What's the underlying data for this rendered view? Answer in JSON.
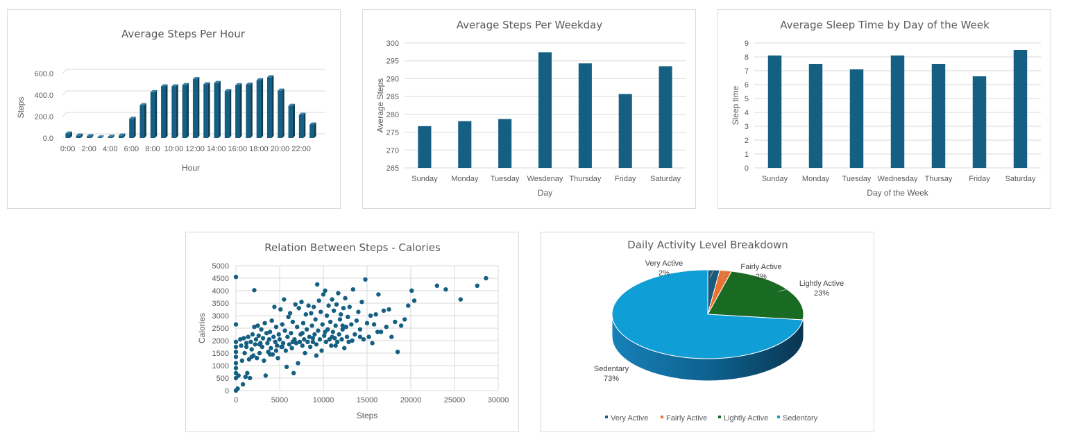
{
  "colors": {
    "bar": "#145f82",
    "bar_dark": "#0d3f57",
    "grid": "#d9d9d9",
    "very_active": "#1a5a7c",
    "fairly_active": "#e97132",
    "lightly_active": "#196b24",
    "sedentary": "#0f9ed5"
  },
  "chart_data": [
    {
      "id": "steps-per-hour",
      "type": "bar",
      "style": "3d-column",
      "title": "Average Steps Per Hour",
      "xlabel": "Hour",
      "ylabel": "Steps",
      "ylim": [
        0,
        600
      ],
      "yticks": [
        "0.0",
        "200.0",
        "400.0",
        "600.0"
      ],
      "xtick_labels": [
        "0:00",
        "2:00",
        "4:00",
        "6:00",
        "8:00",
        "10:00",
        "12:00",
        "14:00",
        "16:00",
        "18:00",
        "20:00",
        "22:00"
      ],
      "x": [
        0,
        1,
        2,
        3,
        4,
        5,
        6,
        7,
        8,
        9,
        10,
        11,
        12,
        13,
        14,
        15,
        16,
        17,
        18,
        19,
        20,
        21,
        22,
        23
      ],
      "values": [
        42,
        23,
        17,
        6,
        12,
        23,
        179,
        306,
        427,
        481,
        481,
        493,
        548,
        500,
        512,
        437,
        491,
        497,
        538,
        565,
        441,
        299,
        216,
        126
      ],
      "grid": true,
      "legend": "none"
    },
    {
      "id": "steps-per-weekday",
      "type": "bar",
      "title": "Average Steps Per Weekday",
      "xlabel": "Day",
      "ylabel": "Average Steps",
      "ylim": [
        265,
        300
      ],
      "yticks": [
        "265",
        "270",
        "275",
        "280",
        "285",
        "290",
        "295",
        "300"
      ],
      "categories": [
        "Sunday",
        "Monday",
        "Tuesday",
        "Wesdenay",
        "Thursday",
        "Friday",
        "Saturday"
      ],
      "values": [
        276.7,
        278.1,
        278.7,
        297.4,
        294.3,
        285.7,
        293.5
      ],
      "grid": true,
      "legend": "none"
    },
    {
      "id": "sleep-by-day",
      "type": "bar",
      "title": "Average Sleep Time by Day of the Week",
      "xlabel": "Day of the Week",
      "ylabel": "Sleep time",
      "ylim": [
        0,
        9
      ],
      "yticks": [
        "0",
        "1",
        "2",
        "3",
        "4",
        "5",
        "6",
        "7",
        "8",
        "9"
      ],
      "categories": [
        "Sunday",
        "Monday",
        "Tuesday",
        "Wednesday",
        "Thursay",
        "Friday",
        "Saturday"
      ],
      "values": [
        8.1,
        7.5,
        7.1,
        8.1,
        7.5,
        6.6,
        8.5
      ],
      "grid": true,
      "legend": "none"
    },
    {
      "id": "steps-vs-calories",
      "type": "scatter",
      "title": "Relation Between Steps - Calories",
      "xlabel": "Steps",
      "ylabel": "Calories",
      "xlim": [
        0,
        30000
      ],
      "ylim": [
        0,
        5000
      ],
      "xticks": [
        "0",
        "5000",
        "10000",
        "15000",
        "20000",
        "25000",
        "30000"
      ],
      "yticks": [
        "0",
        "500",
        "1000",
        "1500",
        "2000",
        "2500",
        "3000",
        "3500",
        "4000",
        "4500",
        "5000"
      ],
      "points": [
        [
          0,
          4550
        ],
        [
          2100,
          4020
        ],
        [
          0,
          2650
        ],
        [
          0,
          1950
        ],
        [
          0,
          1750
        ],
        [
          0,
          1550
        ],
        [
          0,
          1350
        ],
        [
          0,
          1100
        ],
        [
          0,
          900
        ],
        [
          0,
          700
        ],
        [
          0,
          500
        ],
        [
          0,
          0
        ],
        [
          200,
          80
        ],
        [
          300,
          600
        ],
        [
          500,
          2050
        ],
        [
          600,
          1800
        ],
        [
          700,
          1200
        ],
        [
          800,
          250
        ],
        [
          900,
          2100
        ],
        [
          1000,
          1500
        ],
        [
          1100,
          550
        ],
        [
          1200,
          1900
        ],
        [
          1300,
          700
        ],
        [
          1400,
          2150
        ],
        [
          1500,
          1250
        ],
        [
          1600,
          500
        ],
        [
          1700,
          1950
        ],
        [
          1800,
          1650
        ],
        [
          1900,
          2250
        ],
        [
          2000,
          1400
        ],
        [
          2100,
          2550
        ],
        [
          2200,
          1850
        ],
        [
          2300,
          2050
        ],
        [
          2400,
          1300
        ],
        [
          2500,
          2600
        ],
        [
          2600,
          2200
        ],
        [
          2700,
          1500
        ],
        [
          2800,
          1900
        ],
        [
          2900,
          2450
        ],
        [
          3000,
          1750
        ],
        [
          3100,
          2100
        ],
        [
          3200,
          1200
        ],
        [
          3300,
          2700
        ],
        [
          3400,
          600
        ],
        [
          3500,
          2300
        ],
        [
          3600,
          1900
        ],
        [
          3700,
          1550
        ],
        [
          3800,
          2050
        ],
        [
          3900,
          2350
        ],
        [
          4000,
          1700
        ],
        [
          4100,
          2800
        ],
        [
          4200,
          1450
        ],
        [
          4300,
          2150
        ],
        [
          4400,
          3350
        ],
        [
          4500,
          1950
        ],
        [
          4600,
          2550
        ],
        [
          4700,
          1800
        ],
        [
          4800,
          1300
        ],
        [
          4900,
          2250
        ],
        [
          5000,
          2050
        ],
        [
          5100,
          3250
        ],
        [
          5200,
          1750
        ],
        [
          5300,
          2650
        ],
        [
          5400,
          1900
        ],
        [
          5500,
          3650
        ],
        [
          5600,
          2400
        ],
        [
          5700,
          1600
        ],
        [
          5800,
          950
        ],
        [
          5900,
          2150
        ],
        [
          6000,
          2950
        ],
        [
          6100,
          1850
        ],
        [
          6200,
          3100
        ],
        [
          6300,
          2300
        ],
        [
          6400,
          1700
        ],
        [
          6500,
          2750
        ],
        [
          6600,
          700
        ],
        [
          6700,
          2050
        ],
        [
          6800,
          3450
        ],
        [
          6900,
          1900
        ],
        [
          7000,
          2550
        ],
        [
          7100,
          1100
        ],
        [
          7200,
          3300
        ],
        [
          7300,
          1950
        ],
        [
          7400,
          2250
        ],
        [
          7500,
          3550
        ],
        [
          7600,
          1800
        ],
        [
          7700,
          2700
        ],
        [
          7800,
          2050
        ],
        [
          7900,
          1500
        ],
        [
          8000,
          3050
        ],
        [
          8100,
          2450
        ],
        [
          8200,
          1950
        ],
        [
          8300,
          3400
        ],
        [
          8400,
          2150
        ],
        [
          8500,
          1750
        ],
        [
          8600,
          3100
        ],
        [
          8700,
          2600
        ],
        [
          8800,
          1950
        ],
        [
          8900,
          3350
        ],
        [
          9000,
          2250
        ],
        [
          9100,
          2850
        ],
        [
          9200,
          1850
        ],
        [
          9300,
          4250
        ],
        [
          9400,
          2400
        ],
        [
          9500,
          3600
        ],
        [
          9600,
          2050
        ],
        [
          9700,
          3150
        ],
        [
          9800,
          1600
        ],
        [
          9900,
          2650
        ],
        [
          10000,
          3850
        ],
        [
          10100,
          2200
        ],
        [
          10200,
          4000
        ],
        [
          10300,
          1950
        ],
        [
          10400,
          3000
        ],
        [
          10500,
          2450
        ],
        [
          10600,
          3400
        ],
        [
          10700,
          2050
        ],
        [
          10800,
          2750
        ],
        [
          10900,
          1800
        ],
        [
          11000,
          3650
        ],
        [
          11100,
          2350
        ],
        [
          11200,
          3200
        ],
        [
          11300,
          2100
        ],
        [
          11400,
          2600
        ],
        [
          11500,
          3450
        ],
        [
          11600,
          1950
        ],
        [
          11700,
          3900
        ],
        [
          11800,
          2250
        ],
        [
          11900,
          2850
        ],
        [
          12000,
          3050
        ],
        [
          12100,
          2050
        ],
        [
          12200,
          2450
        ],
        [
          12300,
          3300
        ],
        [
          12400,
          1700
        ],
        [
          12500,
          3700
        ],
        [
          12600,
          2550
        ],
        [
          12700,
          2150
        ],
        [
          12800,
          2950
        ],
        [
          12900,
          1950
        ],
        [
          13000,
          3350
        ],
        [
          13200,
          2650
        ],
        [
          13400,
          4050
        ],
        [
          13600,
          2250
        ],
        [
          13800,
          2800
        ],
        [
          14000,
          3150
        ],
        [
          14200,
          2450
        ],
        [
          14400,
          3550
        ],
        [
          14600,
          2050
        ],
        [
          14800,
          4450
        ],
        [
          15000,
          2700
        ],
        [
          15200,
          2150
        ],
        [
          15400,
          3000
        ],
        [
          15600,
          1900
        ],
        [
          15800,
          2650
        ],
        [
          16000,
          3050
        ],
        [
          16300,
          3850
        ],
        [
          16600,
          2350
        ],
        [
          16900,
          3200
        ],
        [
          17200,
          2550
        ],
        [
          17500,
          3250
        ],
        [
          17800,
          2150
        ],
        [
          18200,
          2750
        ],
        [
          18500,
          1550
        ],
        [
          18900,
          2600
        ],
        [
          19300,
          2850
        ],
        [
          19700,
          3400
        ],
        [
          20100,
          4000
        ],
        [
          20400,
          3600
        ],
        [
          23000,
          4200
        ],
        [
          24000,
          4050
        ],
        [
          25700,
          3650
        ],
        [
          27600,
          4200
        ],
        [
          28600,
          4500
        ],
        [
          11400,
          1800
        ],
        [
          9200,
          1400
        ],
        [
          7600,
          2300
        ],
        [
          6500,
          1950
        ],
        [
          5300,
          1750
        ],
        [
          4600,
          1600
        ],
        [
          3900,
          1450
        ],
        [
          2700,
          1850
        ],
        [
          1800,
          1350
        ],
        [
          1200,
          1750
        ],
        [
          8800,
          2100
        ],
        [
          10200,
          2350
        ],
        [
          12200,
          2600
        ],
        [
          14200,
          2150
        ],
        [
          16200,
          2350
        ],
        [
          13300,
          2000
        ],
        [
          11000,
          2150
        ]
      ],
      "grid": true,
      "legend": "none"
    },
    {
      "id": "activity-breakdown",
      "type": "pie",
      "style": "3d-pie",
      "title": "Daily Activity Level Breakdown",
      "categories": [
        "Very Active",
        "Fairly Active",
        "Lightly Active",
        "Sedentary"
      ],
      "values": [
        2,
        2,
        23,
        73
      ],
      "labels": [
        "2%",
        "2%",
        "23%",
        "73%"
      ],
      "legend": "bottom"
    }
  ]
}
